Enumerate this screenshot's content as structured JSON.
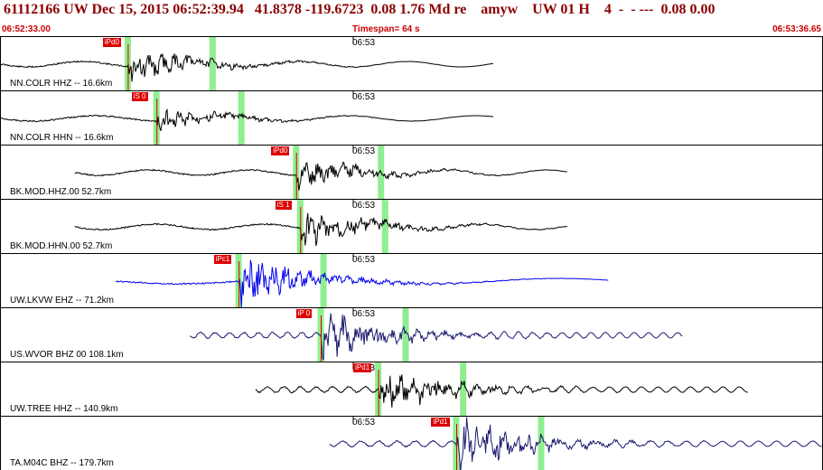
{
  "header": {
    "title": "61112166 UW Dec 15, 2015 06:52:39.94   41.8378 -119.6723  0.08 1.76 Md re    amyw    UW 01 H    4  -  - ---  0.08 0.00",
    "start_time": "06:52:33.00",
    "timespan": "Timespan=  64 s",
    "end_time": "06:53:36.65"
  },
  "colors": {
    "trace": "#000000",
    "blue_trace": "#0000ee",
    "navy_trace": "#1a1a6e",
    "pick": "#dd0000",
    "window": "#90ee90",
    "title": "#8b0000"
  },
  "traces": [
    {
      "station": "NN.COLR HHZ -- 16.6km",
      "tick": "06:53",
      "pick": "iPd0",
      "color": "#000000",
      "start": 0.0,
      "end": 0.6,
      "onset": 0.155,
      "amp": 14,
      "freq": 60
    },
    {
      "station": "NN.COLR HHN -- 16.6km",
      "tick": "06:53",
      "pick": "iS 0",
      "color": "#000000",
      "start": 0.0,
      "end": 0.6,
      "onset": 0.19,
      "amp": 10,
      "freq": 70
    },
    {
      "station": "BK.MOD.HHZ.00 52.7km",
      "tick": "06:53",
      "pick": "iPd0",
      "color": "#000000",
      "start": 0.09,
      "end": 0.69,
      "onset": 0.36,
      "amp": 12,
      "freq": 55
    },
    {
      "station": "BK.MOD.HHN.00 52.7km",
      "tick": "06:53",
      "pick": "iS 1",
      "color": "#000000",
      "start": 0.09,
      "end": 0.69,
      "onset": 0.365,
      "amp": 16,
      "freq": 60
    },
    {
      "station": "UW.LKVW EHZ -- 71.2km",
      "tick": "06:53",
      "pick": "iPc1",
      "color": "#0000ee",
      "start": 0.14,
      "end": 0.74,
      "onset": 0.29,
      "amp": 22,
      "freq": 140
    },
    {
      "station": "US.WVOR BHZ 00 108.1km",
      "tick": "06:53",
      "pick": "iP 0",
      "color": "#1a1a6e",
      "start": 0.23,
      "end": 0.83,
      "onset": 0.39,
      "amp": 20,
      "freq": 8
    },
    {
      "station": "UW.TREE HHZ -- 140.9km",
      "tick": "06:53",
      "pick": "iPd1",
      "color": "#000000",
      "start": 0.31,
      "end": 0.91,
      "onset": 0.46,
      "amp": 20,
      "freq": 9
    },
    {
      "station": "TA.M04C BHZ -- 179.7km",
      "tick": "06:53",
      "pick": "iPd1",
      "color": "#1a1a6e",
      "start": 0.4,
      "end": 1.0,
      "onset": 0.555,
      "amp": 22,
      "freq": 10
    }
  ]
}
